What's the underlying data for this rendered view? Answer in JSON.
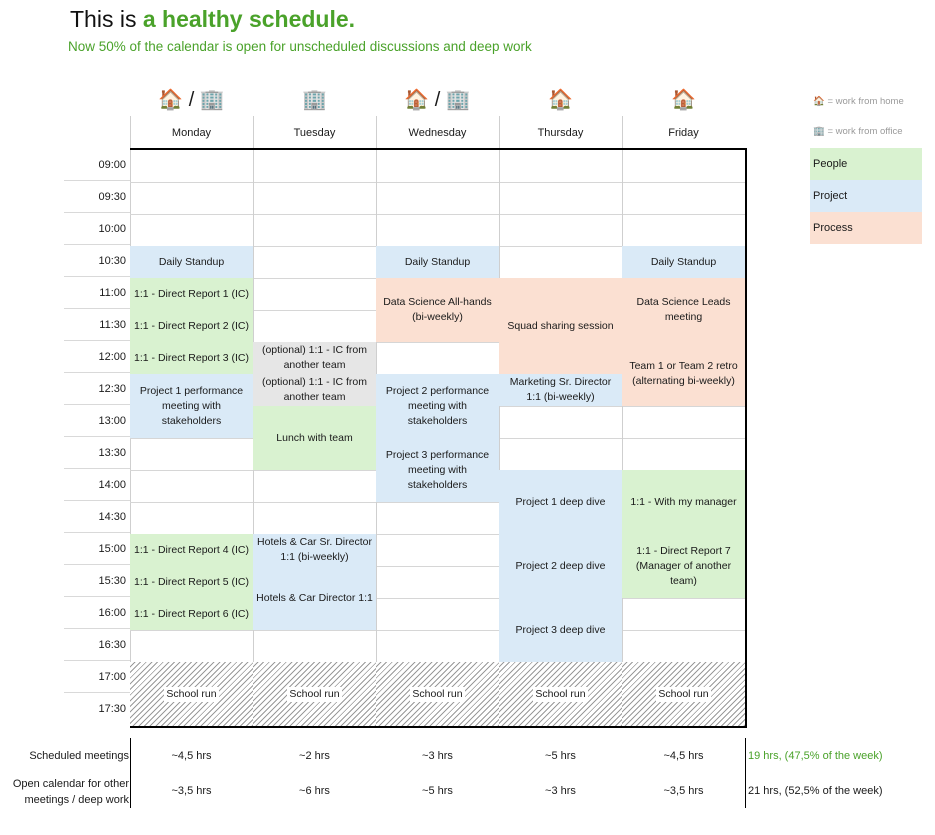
{
  "header": {
    "title_plain": "This is ",
    "title_highlight": "a healthy schedule.",
    "subtitle": "Now 50% of the calendar is open for unscheduled discussions and deep work"
  },
  "days": [
    {
      "name": "Monday",
      "icon": "🏠 / 🏢"
    },
    {
      "name": "Tuesday",
      "icon": "🏢"
    },
    {
      "name": "Wednesday",
      "icon": "🏠 / 🏢"
    },
    {
      "name": "Thursday",
      "icon": "🏠"
    },
    {
      "name": "Friday",
      "icon": "🏠"
    }
  ],
  "times": [
    "09:00",
    "09:30",
    "10:00",
    "10:30",
    "11:00",
    "11:30",
    "12:00",
    "12:30",
    "13:00",
    "13:30",
    "14:00",
    "14:30",
    "15:00",
    "15:30",
    "16:00",
    "16:30",
    "17:00",
    "17:30"
  ],
  "legend": {
    "home": "🏠 = work from home",
    "office": "🏢 = work from office",
    "people": "People",
    "project": "Project",
    "process": "Process"
  },
  "colors": {
    "people": "#d9f2d0",
    "project": "#daeaf7",
    "process": "#fbe0d2",
    "optional": "#e6e6e6",
    "accent_green": "#4aa22a"
  },
  "events": [
    {
      "day": 0,
      "start": "10:30",
      "end": "11:00",
      "category": "project",
      "label": "Daily Standup"
    },
    {
      "day": 0,
      "start": "11:00",
      "end": "11:30",
      "category": "people",
      "label": "1:1 - Direct Report 1 (IC)"
    },
    {
      "day": 0,
      "start": "11:30",
      "end": "12:00",
      "category": "people",
      "label": "1:1 - Direct Report 2 (IC)"
    },
    {
      "day": 0,
      "start": "12:00",
      "end": "12:30",
      "category": "people",
      "label": "1:1 - Direct Report 3 (IC)"
    },
    {
      "day": 0,
      "start": "12:30",
      "end": "13:30",
      "category": "project",
      "label": "Project 1 performance meeting with stakeholders"
    },
    {
      "day": 0,
      "start": "15:00",
      "end": "15:30",
      "category": "people",
      "label": "1:1 - Direct Report 4 (IC)"
    },
    {
      "day": 0,
      "start": "15:30",
      "end": "16:00",
      "category": "people",
      "label": "1:1 - Direct Report 5 (IC)"
    },
    {
      "day": 0,
      "start": "16:00",
      "end": "16:30",
      "category": "people",
      "label": "1:1 - Direct Report 6 (IC)"
    },
    {
      "day": 0,
      "start": "17:00",
      "end": "18:00",
      "category": "school",
      "label": "School run"
    },
    {
      "day": 1,
      "start": "12:00",
      "end": "12:30",
      "category": "optional",
      "label": "(optional) 1:1 - IC from another team"
    },
    {
      "day": 1,
      "start": "12:30",
      "end": "13:00",
      "category": "optional",
      "label": "(optional) 1:1 - IC from another team"
    },
    {
      "day": 1,
      "start": "13:00",
      "end": "14:00",
      "category": "people",
      "label": "Lunch with team"
    },
    {
      "day": 1,
      "start": "15:00",
      "end": "15:30",
      "category": "project",
      "label": "Hotels & Car Sr. Director 1:1 (bi-weekly)"
    },
    {
      "day": 1,
      "start": "15:30",
      "end": "16:30",
      "category": "project",
      "label": "Hotels & Car Director 1:1"
    },
    {
      "day": 1,
      "start": "17:00",
      "end": "18:00",
      "category": "school",
      "label": "School run"
    },
    {
      "day": 2,
      "start": "10:30",
      "end": "11:00",
      "category": "project",
      "label": "Daily Standup"
    },
    {
      "day": 2,
      "start": "11:00",
      "end": "12:00",
      "category": "process",
      "label": "Data Science All-hands (bi-weekly)"
    },
    {
      "day": 2,
      "start": "12:30",
      "end": "13:30",
      "category": "project",
      "label": "Project 2 performance meeting with stakeholders"
    },
    {
      "day": 2,
      "start": "13:30",
      "end": "14:30",
      "category": "project",
      "label": "Project 3 performance meeting with stakeholders"
    },
    {
      "day": 2,
      "start": "17:00",
      "end": "18:00",
      "category": "school",
      "label": "School run"
    },
    {
      "day": 3,
      "start": "11:00",
      "end": "12:30",
      "category": "process",
      "label": "Squad sharing session"
    },
    {
      "day": 3,
      "start": "12:30",
      "end": "13:00",
      "category": "project",
      "label": "Marketing Sr. Director 1:1 (bi-weekly)"
    },
    {
      "day": 3,
      "start": "14:00",
      "end": "15:00",
      "category": "project",
      "label": "Project 1 deep dive"
    },
    {
      "day": 3,
      "start": "15:00",
      "end": "16:00",
      "category": "project",
      "label": "Project 2 deep dive"
    },
    {
      "day": 3,
      "start": "16:00",
      "end": "17:00",
      "category": "project",
      "label": "Project 3 deep dive"
    },
    {
      "day": 3,
      "start": "17:00",
      "end": "18:00",
      "category": "school",
      "label": "School run"
    },
    {
      "day": 4,
      "start": "10:30",
      "end": "11:00",
      "category": "project",
      "label": "Daily Standup"
    },
    {
      "day": 4,
      "start": "11:00",
      "end": "12:00",
      "category": "process",
      "label": "Data Science Leads meeting"
    },
    {
      "day": 4,
      "start": "12:00",
      "end": "13:00",
      "category": "process",
      "label": "Team 1 or Team 2 retro (alternating bi-weekly)"
    },
    {
      "day": 4,
      "start": "14:00",
      "end": "15:00",
      "category": "people",
      "label": "1:1 - With my manager"
    },
    {
      "day": 4,
      "start": "15:00",
      "end": "16:00",
      "category": "people",
      "label": "1:1 - Direct Report 7 (Manager of another team)"
    },
    {
      "day": 4,
      "start": "17:00",
      "end": "18:00",
      "category": "school",
      "label": "School run"
    }
  ],
  "summary": {
    "scheduled_label": "Scheduled meetings",
    "open_label": "Open calendar for other meetings / deep work",
    "scheduled": [
      "~4,5 hrs",
      "~2 hrs",
      "~3 hrs",
      "~5 hrs",
      "~4,5 hrs"
    ],
    "open": [
      "~3,5 hrs",
      "~6 hrs",
      "~5 hrs",
      "~3 hrs",
      "~3,5 hrs"
    ],
    "scheduled_total": "19 hrs, (47,5% of the week)",
    "open_total": "21 hrs, (52,5% of the week)"
  }
}
